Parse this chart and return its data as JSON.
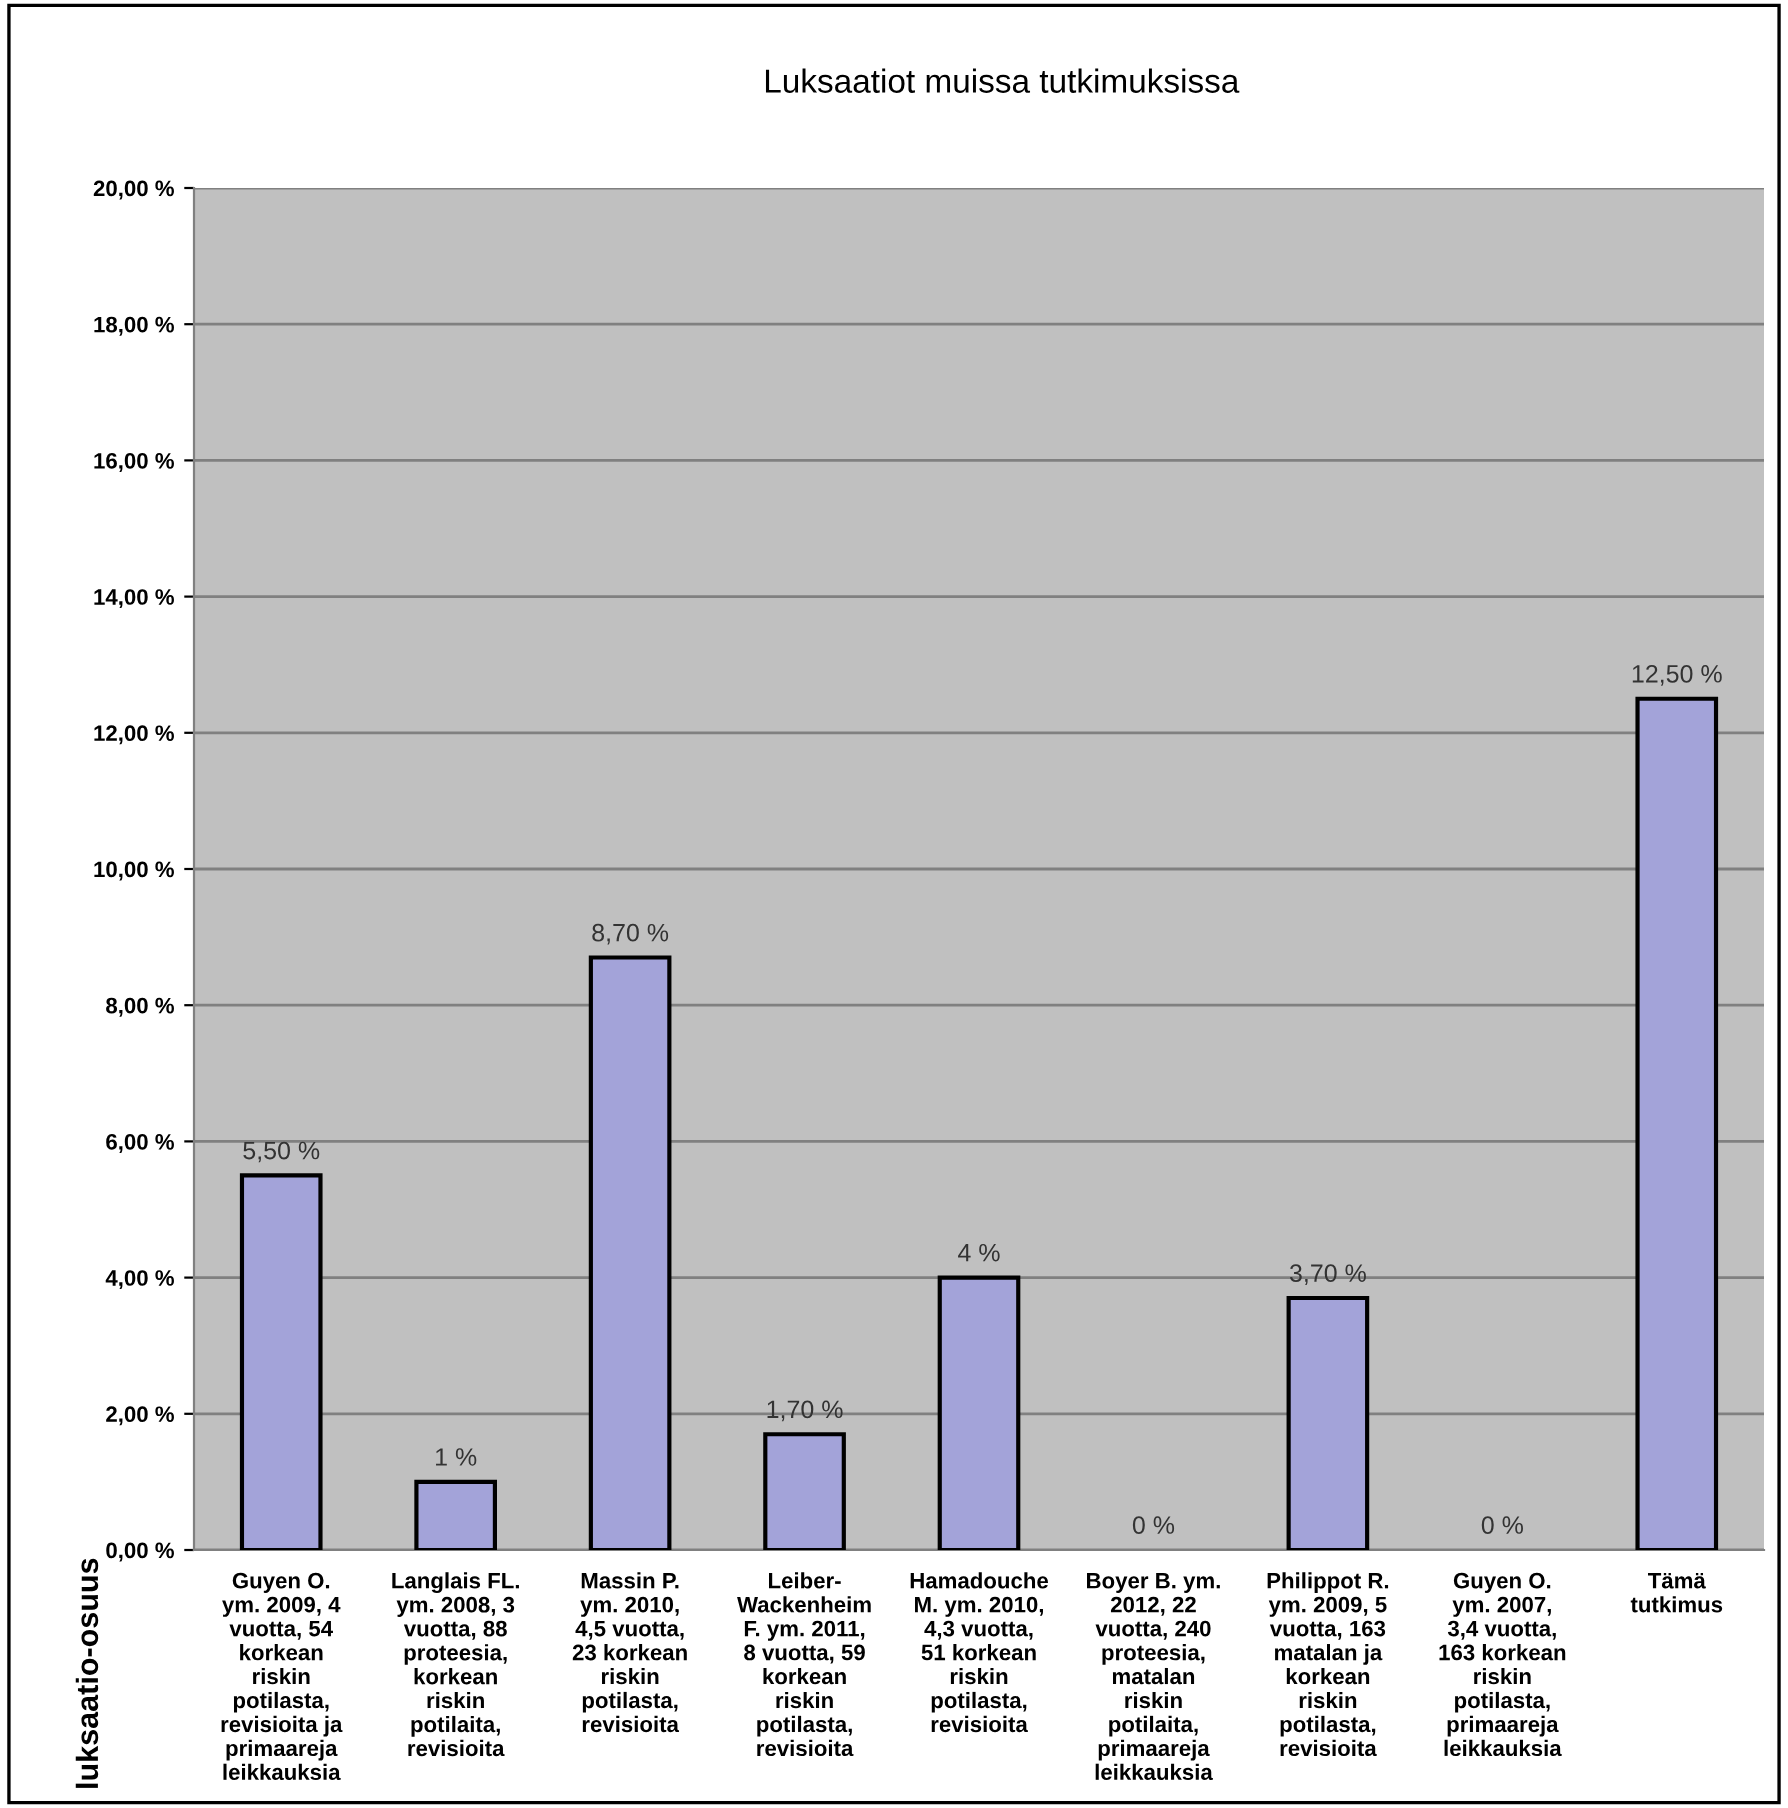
{
  "chart_data": {
    "type": "bar",
    "title": "Luksaatiot muissa tutkimuksissa",
    "ylabel": "luksaatio-osuus",
    "categories": [
      "Guyen O.\nym. 2009, 4\nvuotta, 54\nkorkean\nriskin\npotilasta,\nrevisioita ja\nprimaareja\nleikkauksia",
      "Langlais FL.\nym. 2008, 3\nvuotta, 88\nproteesia,\nkorkean\nriskin\npotilaita,\nrevisioita",
      "Massin P.\nym. 2010,\n4,5 vuotta,\n23 korkean\nriskin\npotilasta,\nrevisioita",
      "Leiber-\nWackenheim\nF. ym. 2011,\n8 vuotta, 59\nkorkean\nriskin\npotilasta,\nrevisioita",
      "Hamadouche\nM. ym. 2010,\n4,3 vuotta,\n51 korkean\nriskin\npotilasta,\nrevisioita",
      "Boyer B. ym.\n2012, 22\nvuotta, 240\nproteesia,\nmatalan\nriskin\npotilaita,\nprimaareja\nleikkauksia",
      "Philippot R.\nym. 2009, 5\nvuotta, 163\nmatalan ja\nkorkean\nriskin\npotilasta,\nrevisioita",
      "Guyen O.\nym. 2007,\n3,4 vuotta,\n163 korkean\nriskin\npotilasta,\nprimaareja\nleikkauksia",
      "Tämä\ntutkimus"
    ],
    "values": [
      5.5,
      1,
      8.7,
      1.7,
      4,
      0,
      3.7,
      0,
      12.5
    ],
    "value_labels": [
      "5,50 %",
      "1 %",
      "8,70 %",
      "1,70 %",
      "4 %",
      "0 %",
      "3,70 %",
      "0 %",
      "12,50 %"
    ],
    "color": "#a3a3d9",
    "ylim": [
      0,
      20
    ],
    "yticks": [
      {
        "value": 0,
        "label": "0,00 %"
      },
      {
        "value": 2,
        "label": "2,00 %"
      },
      {
        "value": 4,
        "label": "4,00 %"
      },
      {
        "value": 6,
        "label": "6,00 %"
      },
      {
        "value": 8,
        "label": "8,00 %"
      },
      {
        "value": 10,
        "label": "10,00 %"
      },
      {
        "value": 12,
        "label": "12,00 %"
      },
      {
        "value": 14,
        "label": "14,00 %"
      },
      {
        "value": 16,
        "label": "16,00 %"
      },
      {
        "value": 18,
        "label": "18,00 %"
      },
      {
        "value": 20,
        "label": "20,00 %"
      }
    ],
    "grid": "y",
    "legend": false
  }
}
